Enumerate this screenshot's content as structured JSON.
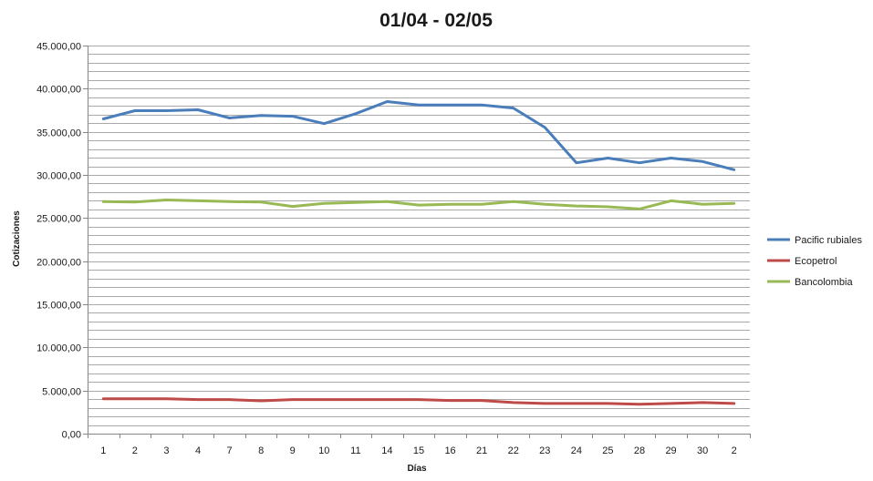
{
  "chart_data": {
    "type": "line",
    "title": "01/04 - 02/05",
    "xlabel": "Días",
    "ylabel": "Cotizaciones",
    "categories": [
      "1",
      "2",
      "3",
      "4",
      "7",
      "8",
      "9",
      "10",
      "11",
      "14",
      "15",
      "16",
      "21",
      "22",
      "23",
      "24",
      "25",
      "28",
      "29",
      "30",
      "2"
    ],
    "ylim": [
      0,
      45000
    ],
    "y_major_step": 5000,
    "y_minor_step": 1000,
    "y_tick_labels": [
      "0,00",
      "5.000,00",
      "10.000,00",
      "15.000,00",
      "20.000,00",
      "25.000,00",
      "30.000,00",
      "35.000,00",
      "40.000,00",
      "45.000,00"
    ],
    "grid": true,
    "legend_position": "right",
    "series": [
      {
        "name": "Pacific rubiales",
        "color": "#4a7ebb",
        "values": [
          36500,
          37450,
          37450,
          37550,
          36600,
          36900,
          36800,
          35950,
          37100,
          38500,
          38100,
          38100,
          38100,
          37750,
          35500,
          31400,
          31950,
          31400,
          31950,
          31550,
          30600
        ]
      },
      {
        "name": "Ecopetrol",
        "color": "#be4b48",
        "values": [
          4050,
          4050,
          4050,
          3950,
          3950,
          3800,
          3950,
          3950,
          3950,
          3950,
          3950,
          3850,
          3850,
          3600,
          3500,
          3500,
          3500,
          3400,
          3500,
          3600,
          3500
        ]
      },
      {
        "name": "Bancolombia",
        "color": "#98b954",
        "values": [
          26900,
          26850,
          27100,
          27000,
          26900,
          26850,
          26350,
          26700,
          26800,
          26900,
          26500,
          26600,
          26600,
          26900,
          26600,
          26400,
          26300,
          26050,
          27000,
          26600,
          26700
        ]
      }
    ]
  }
}
